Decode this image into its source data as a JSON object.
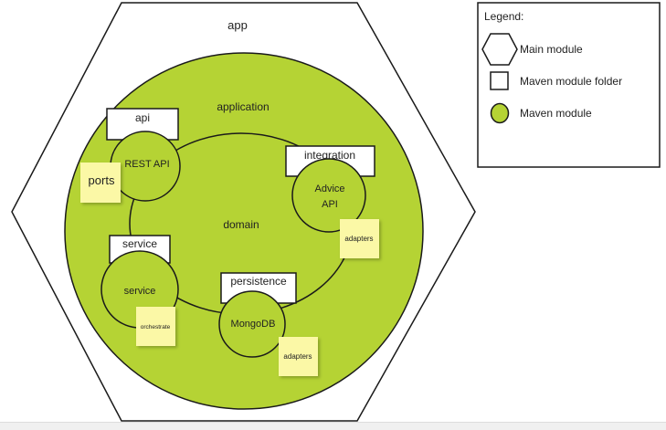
{
  "diagram": {
    "app_label": "app",
    "application_label": "application",
    "domain_label": "domain",
    "modules": {
      "api": {
        "folder_label": "api",
        "module_label": "REST API"
      },
      "integration": {
        "folder_label": "integration",
        "module_label_line1": "Advice",
        "module_label_line2": "API"
      },
      "service": {
        "folder_label": "service",
        "module_label": "service"
      },
      "persistence": {
        "folder_label": "persistence",
        "module_label": "MongoDB"
      }
    },
    "notes": {
      "ports": "ports",
      "adapters_integration": "adapters",
      "orchestrate": "orchestrate",
      "adapters_persistence": "adapters"
    }
  },
  "legend": {
    "title": "Legend:",
    "items": [
      {
        "label": "Main module",
        "shape": "hexagon"
      },
      {
        "label": "Maven module folder",
        "shape": "square"
      },
      {
        "label": "Maven module",
        "shape": "circle"
      }
    ]
  },
  "colors": {
    "green": "#b5d334",
    "note": "#fbf8a6",
    "stroke": "#1a1a1a"
  }
}
